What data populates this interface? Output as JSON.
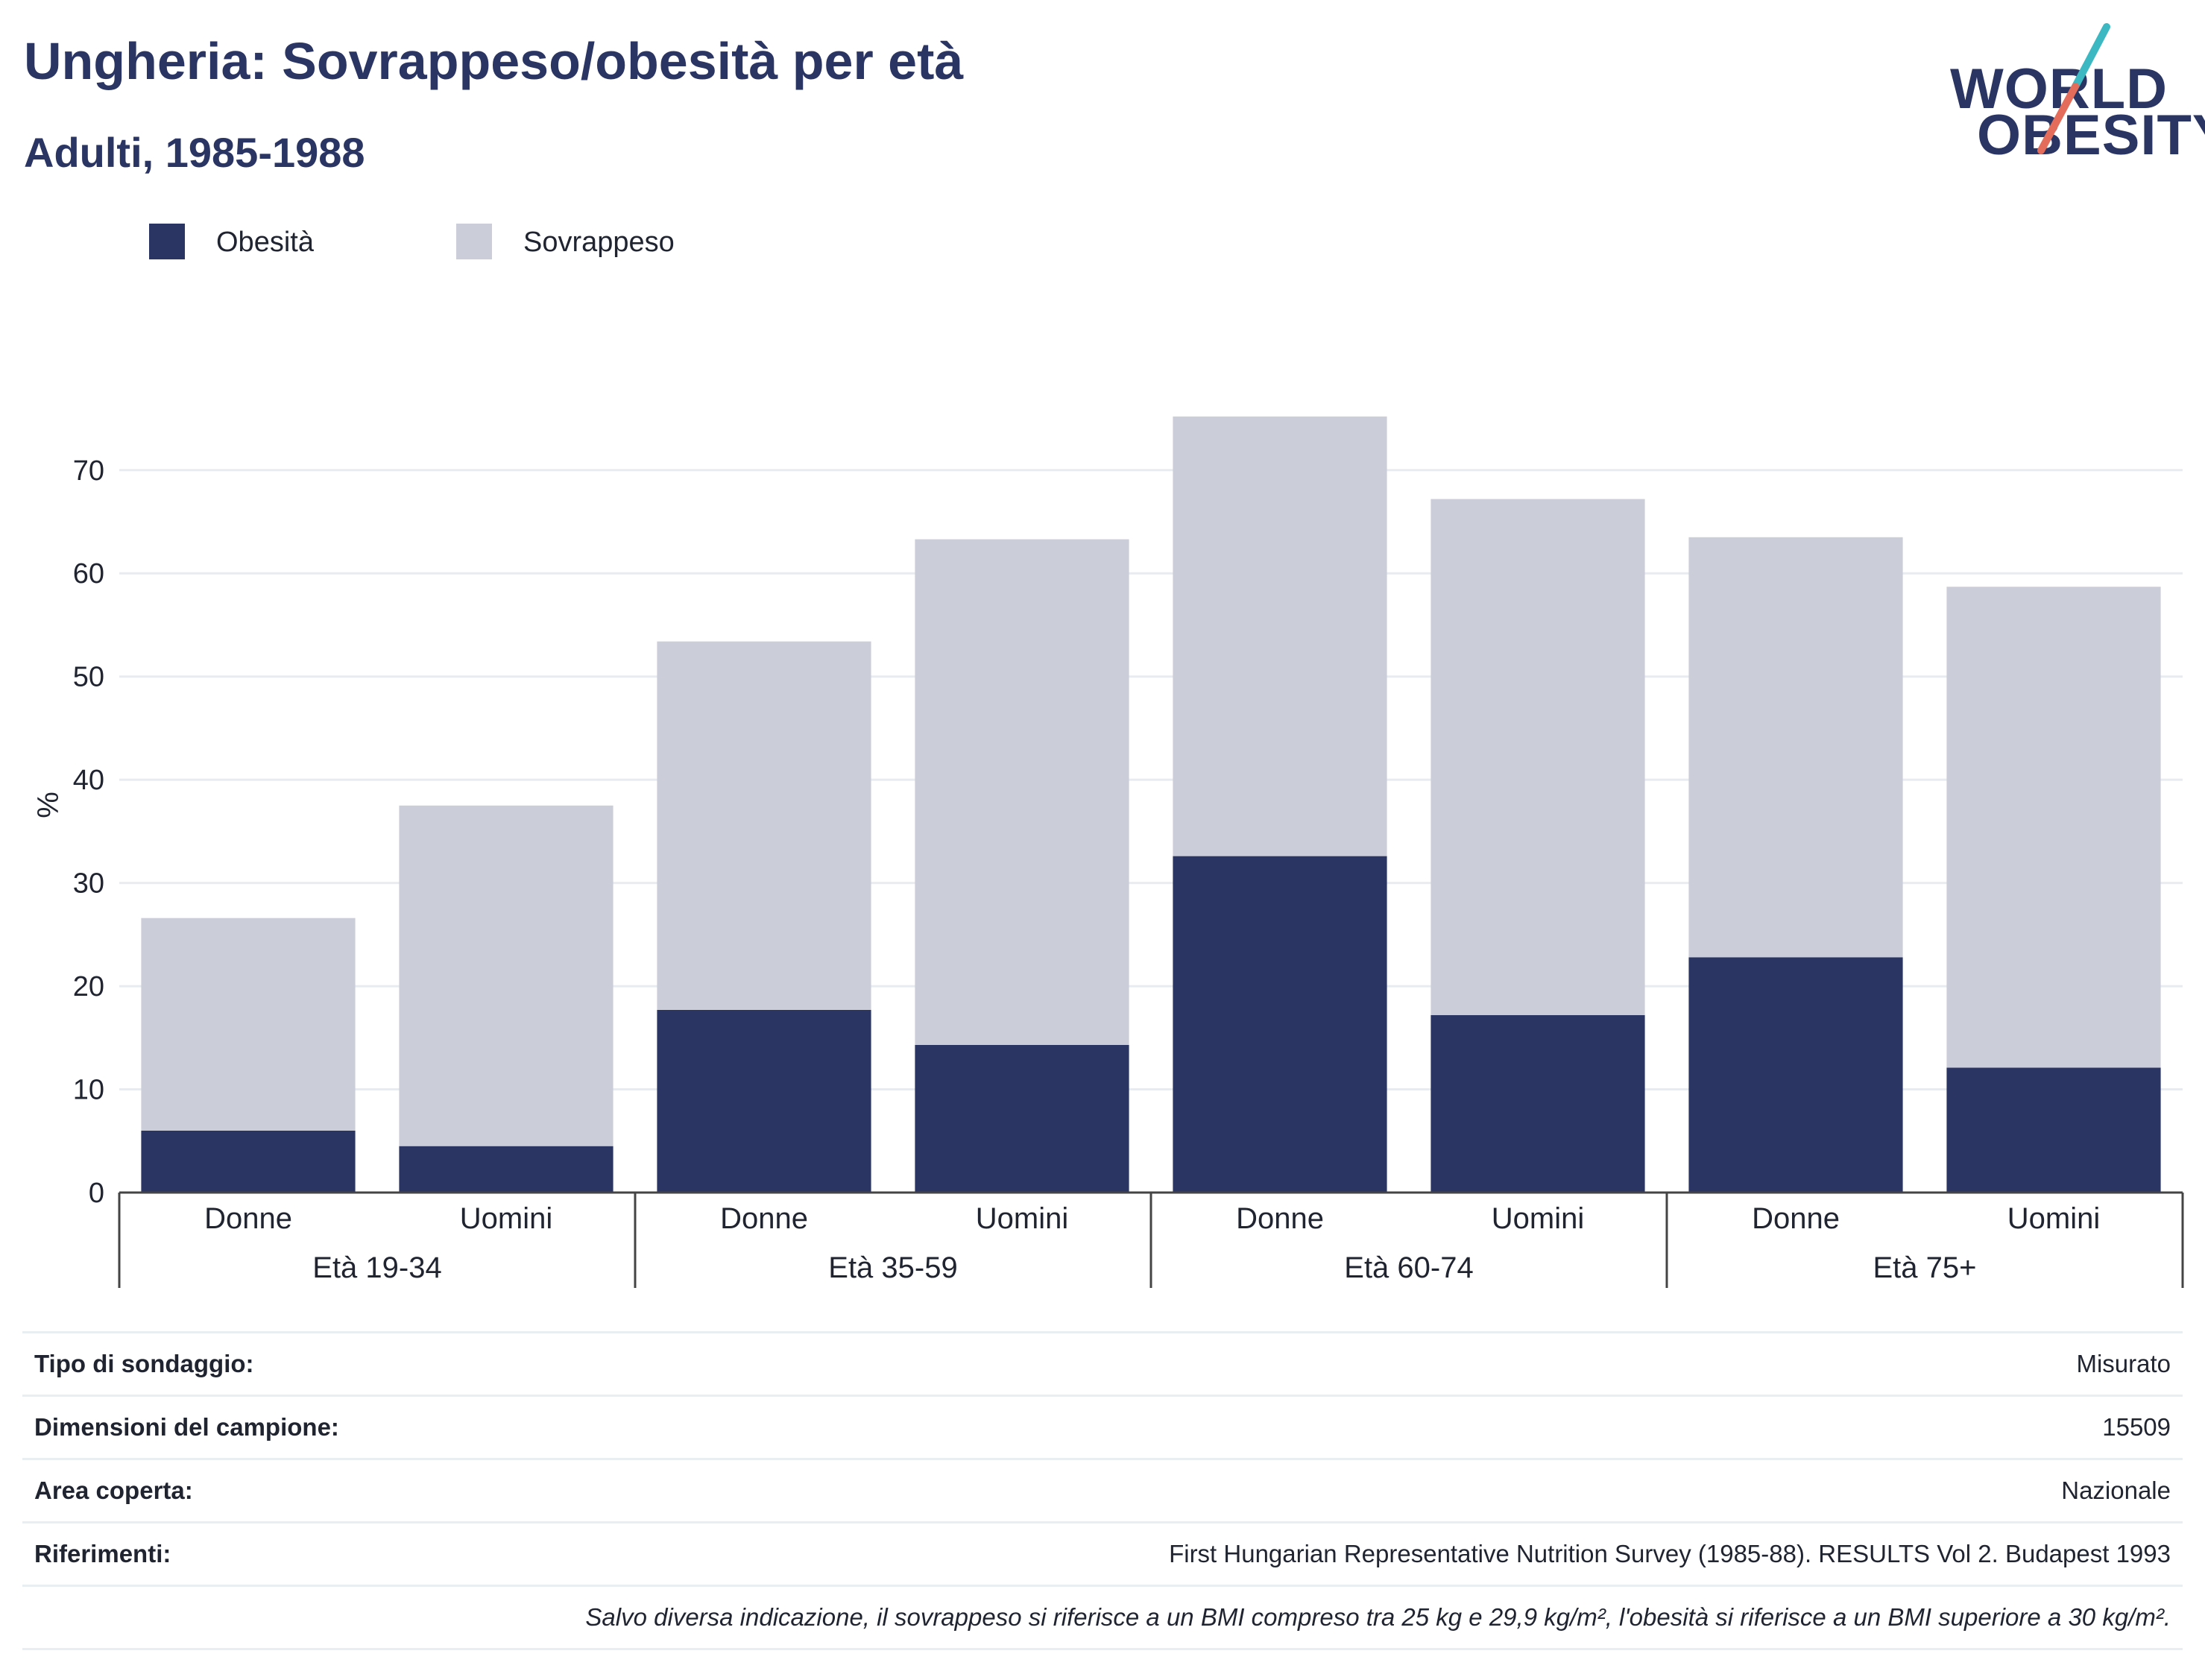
{
  "header": {
    "title": "Ungheria: Sovrappeso/obesità per età",
    "subtitle": "Adulti, 1985-1988"
  },
  "logo": {
    "line1": "WORLD",
    "line2": "OBESITY",
    "accent_colors": [
      "#3bb8c1",
      "#e36c5a"
    ]
  },
  "chart_data": {
    "type": "bar",
    "stacked": true,
    "ylabel": "%",
    "ylim": [
      0,
      78
    ],
    "yticks": [
      0,
      10,
      20,
      30,
      40,
      50,
      60,
      70
    ],
    "grid": true,
    "legend_position": "top-left",
    "groups": [
      {
        "label": "Età 19-34",
        "categories": [
          "Donne",
          "Uomini"
        ]
      },
      {
        "label": "Età 35-59",
        "categories": [
          "Donne",
          "Uomini"
        ]
      },
      {
        "label": "Età 60-74",
        "categories": [
          "Donne",
          "Uomini"
        ]
      },
      {
        "label": "Età 75+",
        "categories": [
          "Donne",
          "Uomini"
        ]
      }
    ],
    "categories": [
      "Donne",
      "Uomini",
      "Donne",
      "Uomini",
      "Donne",
      "Uomini",
      "Donne",
      "Uomini"
    ],
    "series": [
      {
        "name": "Obesità",
        "color": "#2a3563",
        "values": [
          6.0,
          4.5,
          17.7,
          14.3,
          32.6,
          17.2,
          22.8,
          12.1
        ]
      },
      {
        "name": "Sovrappeso",
        "color": "#cbcdd9",
        "values": [
          20.6,
          33.0,
          35.7,
          49.0,
          42.6,
          50.0,
          40.7,
          46.6
        ]
      }
    ]
  },
  "info": {
    "rows": [
      {
        "key": "Tipo di sondaggio:",
        "value": "Misurato"
      },
      {
        "key": "Dimensioni del campione:",
        "value": "15509"
      },
      {
        "key": "Area coperta:",
        "value": "Nazionale"
      },
      {
        "key": "Riferimenti:",
        "value": "First Hungarian Representative Nutrition Survey (1985-88). RESULTS Vol 2. Budapest 1993"
      }
    ],
    "note": "Salvo diversa indicazione, il sovrappeso si riferisce a un BMI compreso tra 25 kg e 29,9 kg/m², l'obesità si riferisce a un BMI superiore a 30 kg/m²."
  }
}
